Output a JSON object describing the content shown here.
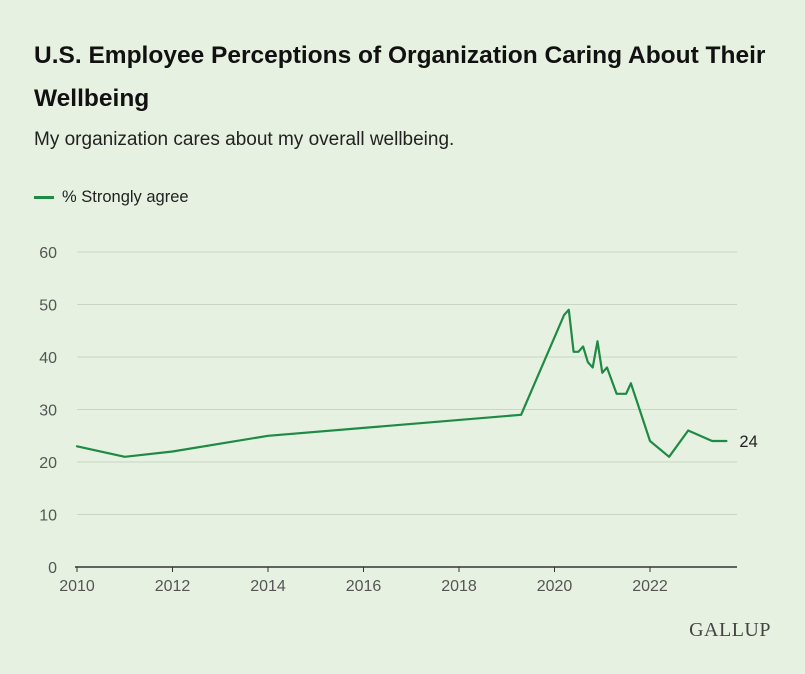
{
  "title": "U.S. Employee Perceptions of Organization Caring About Their Wellbeing",
  "subtitle": "My organization cares about my overall wellbeing.",
  "legend_label": "% Strongly agree",
  "logo_text": "GALLUP",
  "colors": {
    "background": "#e6f1e1",
    "line": "#1e8a44",
    "grid": "#c9d6c4",
    "axis": "#333333"
  },
  "chart_data": {
    "type": "line",
    "title": "U.S. Employee Perceptions of Organization Caring About Their Wellbeing",
    "subtitle": "My organization cares about my overall wellbeing.",
    "xlabel": "",
    "ylabel": "",
    "xlim": [
      2010,
      2023.8
    ],
    "ylim": [
      0,
      60
    ],
    "x_ticks": [
      "2010",
      "2012",
      "2014",
      "2016",
      "2018",
      "2020",
      "2022"
    ],
    "y_ticks": [
      "0",
      "10",
      "20",
      "30",
      "40",
      "50",
      "60"
    ],
    "grid": true,
    "legend": "top-left",
    "end_label": "24",
    "series": [
      {
        "name": "% Strongly agree",
        "x": [
          2010.0,
          2011.0,
          2012.0,
          2014.0,
          2019.3,
          2020.2,
          2020.3,
          2020.4,
          2020.5,
          2020.6,
          2020.7,
          2020.8,
          2020.9,
          2021.0,
          2021.1,
          2021.3,
          2021.5,
          2021.6,
          2022.0,
          2022.4,
          2022.8,
          2023.3,
          2023.6
        ],
        "values": [
          23,
          21,
          22,
          25,
          29,
          48,
          49,
          41,
          41,
          42,
          39,
          38,
          43,
          37,
          38,
          33,
          33,
          35,
          24,
          21,
          26,
          24,
          24
        ]
      }
    ]
  }
}
